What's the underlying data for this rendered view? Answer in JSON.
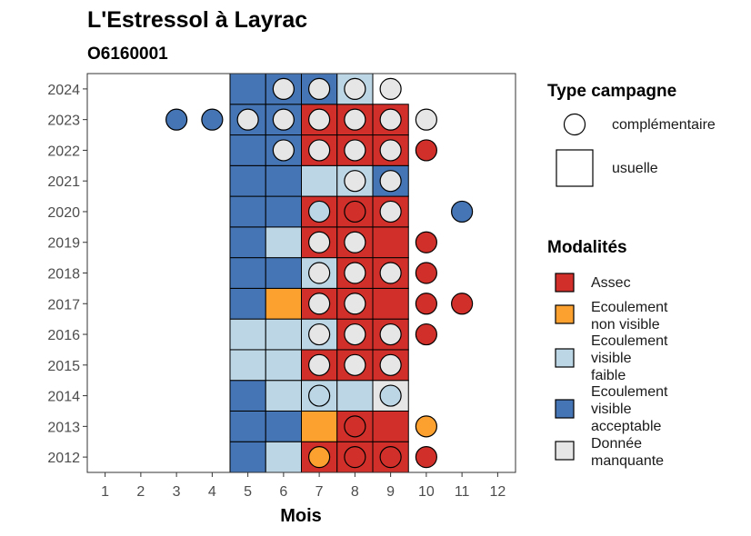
{
  "chart_data": {
    "type": "heatmap",
    "title": "L'Estressol à Layrac",
    "subtitle": "O6160001",
    "xlabel": "Mois",
    "ylabel": "",
    "x_ticks": [
      "1",
      "2",
      "3",
      "4",
      "5",
      "6",
      "7",
      "8",
      "9",
      "10",
      "11",
      "12"
    ],
    "y_ticks": [
      "2012",
      "2013",
      "2014",
      "2015",
      "2016",
      "2017",
      "2018",
      "2019",
      "2020",
      "2021",
      "2022",
      "2023",
      "2024"
    ],
    "xlim": [
      0.5,
      12.5
    ],
    "ylim": [
      2011.5,
      2024.5
    ],
    "colors": {
      "Assec": "#d1302a",
      "Ecoulement non visible": "#fca02f",
      "Ecoulement visible faible": "#bcd6e6",
      "Ecoulement visible acceptable": "#4575b4",
      "Donnée manquante": "#e6e6e6"
    },
    "usuelle": [
      {
        "year": 2012,
        "month": 5,
        "mod": "Ecoulement visible acceptable"
      },
      {
        "year": 2012,
        "month": 6,
        "mod": "Ecoulement visible faible"
      },
      {
        "year": 2012,
        "month": 7,
        "mod": "Assec"
      },
      {
        "year": 2012,
        "month": 8,
        "mod": "Assec"
      },
      {
        "year": 2012,
        "month": 9,
        "mod": "Assec"
      },
      {
        "year": 2013,
        "month": 5,
        "mod": "Ecoulement visible acceptable"
      },
      {
        "year": 2013,
        "month": 6,
        "mod": "Ecoulement visible acceptable"
      },
      {
        "year": 2013,
        "month": 7,
        "mod": "Ecoulement non visible"
      },
      {
        "year": 2013,
        "month": 8,
        "mod": "Assec"
      },
      {
        "year": 2013,
        "month": 9,
        "mod": "Assec"
      },
      {
        "year": 2014,
        "month": 5,
        "mod": "Ecoulement visible acceptable"
      },
      {
        "year": 2014,
        "month": 6,
        "mod": "Ecoulement visible faible"
      },
      {
        "year": 2014,
        "month": 7,
        "mod": "Ecoulement visible faible"
      },
      {
        "year": 2014,
        "month": 8,
        "mod": "Ecoulement visible faible"
      },
      {
        "year": 2014,
        "month": 9,
        "mod": "Donnée manquante"
      },
      {
        "year": 2015,
        "month": 5,
        "mod": "Ecoulement visible faible"
      },
      {
        "year": 2015,
        "month": 6,
        "mod": "Ecoulement visible faible"
      },
      {
        "year": 2015,
        "month": 7,
        "mod": "Assec"
      },
      {
        "year": 2015,
        "month": 8,
        "mod": "Assec"
      },
      {
        "year": 2015,
        "month": 9,
        "mod": "Assec"
      },
      {
        "year": 2016,
        "month": 5,
        "mod": "Ecoulement visible faible"
      },
      {
        "year": 2016,
        "month": 6,
        "mod": "Ecoulement visible faible"
      },
      {
        "year": 2016,
        "month": 7,
        "mod": "Ecoulement visible faible"
      },
      {
        "year": 2016,
        "month": 8,
        "mod": "Assec"
      },
      {
        "year": 2016,
        "month": 9,
        "mod": "Assec"
      },
      {
        "year": 2017,
        "month": 5,
        "mod": "Ecoulement visible acceptable"
      },
      {
        "year": 2017,
        "month": 6,
        "mod": "Ecoulement non visible"
      },
      {
        "year": 2017,
        "month": 7,
        "mod": "Assec"
      },
      {
        "year": 2017,
        "month": 8,
        "mod": "Assec"
      },
      {
        "year": 2017,
        "month": 9,
        "mod": "Assec"
      },
      {
        "year": 2018,
        "month": 5,
        "mod": "Ecoulement visible acceptable"
      },
      {
        "year": 2018,
        "month": 6,
        "mod": "Ecoulement visible acceptable"
      },
      {
        "year": 2018,
        "month": 7,
        "mod": "Ecoulement visible faible"
      },
      {
        "year": 2018,
        "month": 8,
        "mod": "Assec"
      },
      {
        "year": 2018,
        "month": 9,
        "mod": "Assec"
      },
      {
        "year": 2019,
        "month": 5,
        "mod": "Ecoulement visible acceptable"
      },
      {
        "year": 2019,
        "month": 6,
        "mod": "Ecoulement visible faible"
      },
      {
        "year": 2019,
        "month": 7,
        "mod": "Assec"
      },
      {
        "year": 2019,
        "month": 8,
        "mod": "Assec"
      },
      {
        "year": 2019,
        "month": 9,
        "mod": "Assec"
      },
      {
        "year": 2020,
        "month": 5,
        "mod": "Ecoulement visible acceptable"
      },
      {
        "year": 2020,
        "month": 6,
        "mod": "Ecoulement visible acceptable"
      },
      {
        "year": 2020,
        "month": 7,
        "mod": "Assec"
      },
      {
        "year": 2020,
        "month": 8,
        "mod": "Assec"
      },
      {
        "year": 2020,
        "month": 9,
        "mod": "Assec"
      },
      {
        "year": 2021,
        "month": 5,
        "mod": "Ecoulement visible acceptable"
      },
      {
        "year": 2021,
        "month": 6,
        "mod": "Ecoulement visible acceptable"
      },
      {
        "year": 2021,
        "month": 7,
        "mod": "Ecoulement visible faible"
      },
      {
        "year": 2021,
        "month": 8,
        "mod": "Ecoulement visible faible"
      },
      {
        "year": 2021,
        "month": 9,
        "mod": "Ecoulement visible acceptable"
      },
      {
        "year": 2022,
        "month": 5,
        "mod": "Ecoulement visible acceptable"
      },
      {
        "year": 2022,
        "month": 6,
        "mod": "Ecoulement visible acceptable"
      },
      {
        "year": 2022,
        "month": 7,
        "mod": "Assec"
      },
      {
        "year": 2022,
        "month": 8,
        "mod": "Assec"
      },
      {
        "year": 2022,
        "month": 9,
        "mod": "Assec"
      },
      {
        "year": 2023,
        "month": 5,
        "mod": "Ecoulement visible acceptable"
      },
      {
        "year": 2023,
        "month": 6,
        "mod": "Ecoulement visible acceptable"
      },
      {
        "year": 2023,
        "month": 7,
        "mod": "Assec"
      },
      {
        "year": 2023,
        "month": 8,
        "mod": "Assec"
      },
      {
        "year": 2023,
        "month": 9,
        "mod": "Assec"
      },
      {
        "year": 2024,
        "month": 5,
        "mod": "Ecoulement visible acceptable"
      },
      {
        "year": 2024,
        "month": 6,
        "mod": "Ecoulement visible acceptable"
      },
      {
        "year": 2024,
        "month": 7,
        "mod": "Ecoulement visible acceptable"
      },
      {
        "year": 2024,
        "month": 8,
        "mod": "Ecoulement visible faible"
      }
    ],
    "complementaire": [
      {
        "year": 2012,
        "month": 7,
        "mod": "Ecoulement non visible"
      },
      {
        "year": 2012,
        "month": 8,
        "mod": "Assec"
      },
      {
        "year": 2012,
        "month": 9,
        "mod": "Assec"
      },
      {
        "year": 2012,
        "month": 10,
        "mod": "Assec"
      },
      {
        "year": 2013,
        "month": 8,
        "mod": "Assec"
      },
      {
        "year": 2013,
        "month": 10,
        "mod": "Ecoulement non visible"
      },
      {
        "year": 2014,
        "month": 7,
        "mod": "Ecoulement visible faible"
      },
      {
        "year": 2014,
        "month": 9,
        "mod": "Ecoulement visible faible"
      },
      {
        "year": 2015,
        "month": 7,
        "mod": "Donnée manquante"
      },
      {
        "year": 2015,
        "month": 8,
        "mod": "Donnée manquante"
      },
      {
        "year": 2015,
        "month": 9,
        "mod": "Donnée manquante"
      },
      {
        "year": 2016,
        "month": 7,
        "mod": "Donnée manquante"
      },
      {
        "year": 2016,
        "month": 8,
        "mod": "Donnée manquante"
      },
      {
        "year": 2016,
        "month": 9,
        "mod": "Donnée manquante"
      },
      {
        "year": 2016,
        "month": 10,
        "mod": "Assec"
      },
      {
        "year": 2017,
        "month": 7,
        "mod": "Donnée manquante"
      },
      {
        "year": 2017,
        "month": 8,
        "mod": "Donnée manquante"
      },
      {
        "year": 2017,
        "month": 10,
        "mod": "Assec"
      },
      {
        "year": 2017,
        "month": 11,
        "mod": "Assec"
      },
      {
        "year": 2018,
        "month": 7,
        "mod": "Donnée manquante"
      },
      {
        "year": 2018,
        "month": 8,
        "mod": "Donnée manquante"
      },
      {
        "year": 2018,
        "month": 9,
        "mod": "Donnée manquante"
      },
      {
        "year": 2018,
        "month": 10,
        "mod": "Assec"
      },
      {
        "year": 2019,
        "month": 7,
        "mod": "Donnée manquante"
      },
      {
        "year": 2019,
        "month": 8,
        "mod": "Donnée manquante"
      },
      {
        "year": 2019,
        "month": 10,
        "mod": "Assec"
      },
      {
        "year": 2020,
        "month": 7,
        "mod": "Ecoulement visible faible"
      },
      {
        "year": 2020,
        "month": 8,
        "mod": "Assec"
      },
      {
        "year": 2020,
        "month": 9,
        "mod": "Donnée manquante"
      },
      {
        "year": 2020,
        "month": 11,
        "mod": "Ecoulement visible acceptable"
      },
      {
        "year": 2021,
        "month": 8,
        "mod": "Donnée manquante"
      },
      {
        "year": 2021,
        "month": 9,
        "mod": "Donnée manquante"
      },
      {
        "year": 2022,
        "month": 6,
        "mod": "Donnée manquante"
      },
      {
        "year": 2022,
        "month": 7,
        "mod": "Donnée manquante"
      },
      {
        "year": 2022,
        "month": 8,
        "mod": "Donnée manquante"
      },
      {
        "year": 2022,
        "month": 9,
        "mod": "Donnée manquante"
      },
      {
        "year": 2022,
        "month": 10,
        "mod": "Assec"
      },
      {
        "year": 2023,
        "month": 3,
        "mod": "Ecoulement visible acceptable"
      },
      {
        "year": 2023,
        "month": 4,
        "mod": "Ecoulement visible acceptable"
      },
      {
        "year": 2023,
        "month": 5,
        "mod": "Donnée manquante"
      },
      {
        "year": 2023,
        "month": 6,
        "mod": "Donnée manquante"
      },
      {
        "year": 2023,
        "month": 7,
        "mod": "Donnée manquante"
      },
      {
        "year": 2023,
        "month": 8,
        "mod": "Donnée manquante"
      },
      {
        "year": 2023,
        "month": 9,
        "mod": "Donnée manquante"
      },
      {
        "year": 2023,
        "month": 10,
        "mod": "Donnée manquante"
      },
      {
        "year": 2024,
        "month": 6,
        "mod": "Donnée manquante"
      },
      {
        "year": 2024,
        "month": 7,
        "mod": "Donnée manquante"
      },
      {
        "year": 2024,
        "month": 8,
        "mod": "Donnée manquante"
      },
      {
        "year": 2024,
        "month": 9,
        "mod": "Donnée manquante"
      }
    ],
    "legend_shape": {
      "title": "Type campagne",
      "items": [
        "complémentaire",
        "usuelle"
      ]
    },
    "legend_fill": {
      "title": "Modalités",
      "items": [
        {
          "key": "Assec",
          "lines": [
            "Assec"
          ]
        },
        {
          "key": "Ecoulement non visible",
          "lines": [
            "Ecoulement",
            "non visible"
          ]
        },
        {
          "key": "Ecoulement visible faible",
          "lines": [
            "Ecoulement",
            "visible",
            "faible"
          ]
        },
        {
          "key": "Ecoulement visible acceptable",
          "lines": [
            "Ecoulement",
            "visible",
            "acceptable"
          ]
        },
        {
          "key": "Donnée manquante",
          "lines": [
            "Donnée",
            "manquante"
          ]
        }
      ]
    }
  }
}
